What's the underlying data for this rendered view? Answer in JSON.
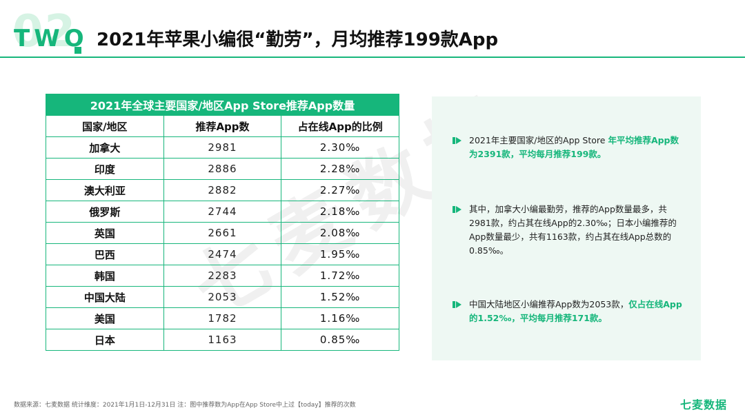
{
  "header": {
    "section_number": "02",
    "section_word": "TWO",
    "title": "2021年苹果小编很“勤劳”，月均推荐199款App"
  },
  "watermark": "七麦数据",
  "table": {
    "caption": "2021年全球主要国家/地区App Store推荐App数量",
    "columns": [
      "国家/地区",
      "推荐App数",
      "占在线App的比例"
    ],
    "rows": [
      {
        "country": "加拿大",
        "count": "2981",
        "ratio": "2.30‰"
      },
      {
        "country": "印度",
        "count": "2886",
        "ratio": "2.28‰"
      },
      {
        "country": "澳大利亚",
        "count": "2882",
        "ratio": "2.27‰"
      },
      {
        "country": "俄罗斯",
        "count": "2744",
        "ratio": "2.18‰"
      },
      {
        "country": "英国",
        "count": "2661",
        "ratio": "2.08‰"
      },
      {
        "country": "巴西",
        "count": "2474",
        "ratio": "1.95‰"
      },
      {
        "country": "韩国",
        "count": "2283",
        "ratio": "1.72‰"
      },
      {
        "country": "中国大陆",
        "count": "2053",
        "ratio": "1.52‰"
      },
      {
        "country": "美国",
        "count": "1782",
        "ratio": "1.16‰"
      },
      {
        "country": "日本",
        "count": "1163",
        "ratio": "0.85‰"
      }
    ]
  },
  "insights": [
    {
      "plain": "2021年主要国家/地区的App Store ",
      "highlight": "年平均推荐App数为2391款，平均每月推荐199款。"
    },
    {
      "plain": "其中，加拿大小编最勤劳，推荐的App数量最多，共2981款，约占其在线App的2.30‰；日本小编推荐的App数量最少，共有1163款，约占其在线App总数的0.85‰。",
      "highlight": ""
    },
    {
      "plain": "中国大陆地区小编推荐App数为2053款，",
      "highlight": "仅占在线App的1.52‰，平均每月推荐171款。"
    }
  ],
  "footer": {
    "note": "数据来源：七麦数据  统计维度：2021年1月1日-12月31日  注：图中推荐数为App在App Store中上过【today】推荐的次数",
    "brand": "七麦数据"
  },
  "colors": {
    "accent": "#16b67b",
    "panel_bg": "#eef8f3"
  }
}
